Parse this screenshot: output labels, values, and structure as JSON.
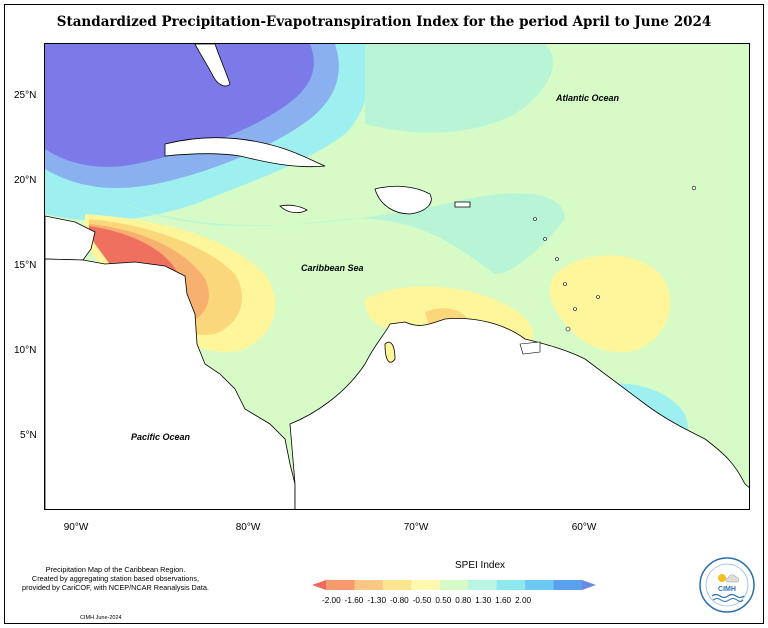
{
  "title": "Standardized Precipitation-Evapotranspiration Index for the period April to June 2024",
  "map": {
    "labels": {
      "atlantic": "Atlantic Ocean",
      "caribbean": "Caribbean Sea",
      "pacific": "Pacific Ocean"
    },
    "lat_ticks": [
      "25°N",
      "20°N",
      "15°N",
      "10°N",
      "5°N"
    ],
    "lon_ticks": [
      "90°W",
      "80°W",
      "70°W",
      "60°W"
    ],
    "colors": {
      "near_normal": "#d6fbc6",
      "mild_wet": "#b8f5d6",
      "moderate_wet": "#9ef0f0",
      "wet": "#6fd8f5",
      "very_wet": "#8ab0f0",
      "extreme_wet": "#7b7ae8",
      "mild_dry": "#fff59a",
      "moderate_dry": "#fbd77c",
      "dry": "#f8b070",
      "extreme_dry": "#f07060",
      "land": "#ffffff"
    }
  },
  "footer": {
    "description_lines": [
      "Precipitation Map of the Caribbean Region.",
      "Created by aggregating station based observations,",
      "provided by CariCOF, with NCEP/NCAR Reanalysis Data."
    ],
    "credit": "CIMH June-2024"
  },
  "legend": {
    "title": "SPEI Index",
    "labels": [
      "-2.00",
      "-1.60",
      "-1.30",
      "-0.80",
      "-0.50",
      "0.50",
      "0.80",
      "1.30",
      "1.60",
      "2.00"
    ],
    "colors": [
      "#ef6a5a",
      "#f59a6e",
      "#fbc786",
      "#fbe58e",
      "#fff8b0",
      "#d6fbc6",
      "#b8f5e2",
      "#8ee8f0",
      "#6dc8f2",
      "#5aa0ea",
      "#6a88e8"
    ]
  },
  "logo": {
    "name": "CIMH"
  }
}
